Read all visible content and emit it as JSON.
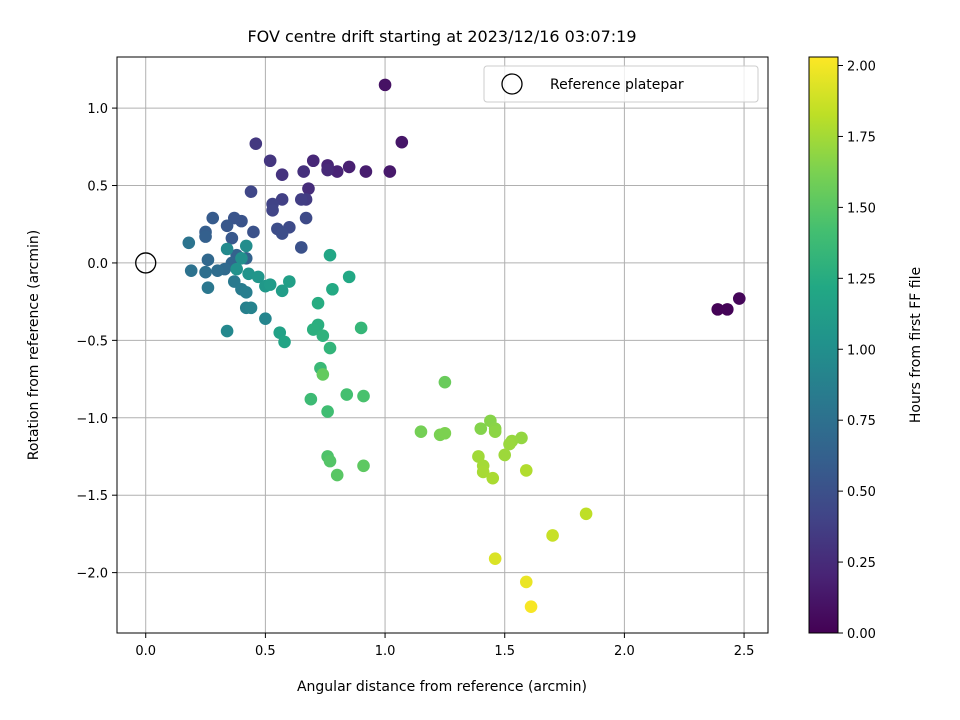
{
  "chart_data": {
    "type": "scatter",
    "title": "FOV centre drift starting at 2023/12/16 03:07:19",
    "xlabel": "Angular distance from reference (arcmin)",
    "ylabel": "Rotation from reference (arcmin)",
    "xlim": [
      -0.12,
      2.6
    ],
    "ylim": [
      -2.39,
      1.33
    ],
    "xticks": [
      0.0,
      0.5,
      1.0,
      1.5,
      2.0,
      2.5
    ],
    "xtick_labels": [
      "0.0",
      "0.5",
      "1.0",
      "1.5",
      "2.0",
      "2.5"
    ],
    "yticks": [
      1.0,
      0.5,
      0.0,
      -0.5,
      -1.0,
      -1.5,
      -2.0
    ],
    "ytick_labels": [
      "1.0",
      "0.5",
      "0.0",
      "−0.5",
      "−1.0",
      "−1.5",
      "−2.0"
    ],
    "grid": true,
    "legend": {
      "placement": "top-right",
      "label": "Reference platepar",
      "marker": "open-circle"
    },
    "reference_point": {
      "x": 0.0,
      "y": 0.0
    },
    "colorbar": {
      "label": "Hours from first FF file",
      "range": [
        0.0,
        2.03
      ],
      "colormap": "viridis",
      "ticks": [
        0.0,
        0.25,
        0.5,
        0.75,
        1.0,
        1.25,
        1.5,
        1.75,
        2.0
      ],
      "tick_labels": [
        "0.00",
        "0.25",
        "0.50",
        "0.75",
        "1.00",
        "1.25",
        "1.50",
        "1.75",
        "2.00"
      ]
    },
    "points": [
      {
        "x": 2.39,
        "y": -0.3,
        "c": 0.01
      },
      {
        "x": 2.43,
        "y": -0.3,
        "c": 0.02
      },
      {
        "x": 2.48,
        "y": -0.23,
        "c": 0.03
      },
      {
        "x": 1.0,
        "y": 1.15,
        "c": 0.1
      },
      {
        "x": 1.07,
        "y": 0.78,
        "c": 0.12
      },
      {
        "x": 1.02,
        "y": 0.59,
        "c": 0.14
      },
      {
        "x": 0.92,
        "y": 0.59,
        "c": 0.16
      },
      {
        "x": 0.85,
        "y": 0.62,
        "c": 0.18
      },
      {
        "x": 0.8,
        "y": 0.59,
        "c": 0.2
      },
      {
        "x": 0.76,
        "y": 0.63,
        "c": 0.21
      },
      {
        "x": 0.7,
        "y": 0.66,
        "c": 0.22
      },
      {
        "x": 0.76,
        "y": 0.6,
        "c": 0.24
      },
      {
        "x": 0.68,
        "y": 0.48,
        "c": 0.26
      },
      {
        "x": 0.66,
        "y": 0.59,
        "c": 0.28
      },
      {
        "x": 0.57,
        "y": 0.57,
        "c": 0.3
      },
      {
        "x": 0.52,
        "y": 0.66,
        "c": 0.32
      },
      {
        "x": 0.46,
        "y": 0.77,
        "c": 0.33
      },
      {
        "x": 0.67,
        "y": 0.41,
        "c": 0.35
      },
      {
        "x": 0.65,
        "y": 0.41,
        "c": 0.37
      },
      {
        "x": 0.57,
        "y": 0.41,
        "c": 0.38
      },
      {
        "x": 0.53,
        "y": 0.38,
        "c": 0.4
      },
      {
        "x": 0.53,
        "y": 0.34,
        "c": 0.41
      },
      {
        "x": 0.44,
        "y": 0.46,
        "c": 0.43
      },
      {
        "x": 0.67,
        "y": 0.29,
        "c": 0.45
      },
      {
        "x": 0.6,
        "y": 0.23,
        "c": 0.46
      },
      {
        "x": 0.55,
        "y": 0.22,
        "c": 0.47
      },
      {
        "x": 0.57,
        "y": 0.19,
        "c": 0.48
      },
      {
        "x": 0.65,
        "y": 0.1,
        "c": 0.5
      },
      {
        "x": 0.45,
        "y": 0.2,
        "c": 0.51
      },
      {
        "x": 0.4,
        "y": 0.27,
        "c": 0.52
      },
      {
        "x": 0.37,
        "y": 0.29,
        "c": 0.53
      },
      {
        "x": 0.34,
        "y": 0.24,
        "c": 0.55
      },
      {
        "x": 0.36,
        "y": 0.16,
        "c": 0.56
      },
      {
        "x": 0.28,
        "y": 0.29,
        "c": 0.58
      },
      {
        "x": 0.25,
        "y": 0.2,
        "c": 0.6
      },
      {
        "x": 0.25,
        "y": 0.17,
        "c": 0.62
      },
      {
        "x": 0.38,
        "y": 0.05,
        "c": 0.63
      },
      {
        "x": 0.42,
        "y": 0.03,
        "c": 0.64
      },
      {
        "x": 0.36,
        "y": 0.0,
        "c": 0.66
      },
      {
        "x": 0.26,
        "y": 0.02,
        "c": 0.68
      },
      {
        "x": 0.33,
        "y": -0.04,
        "c": 0.7
      },
      {
        "x": 0.3,
        "y": -0.05,
        "c": 0.72
      },
      {
        "x": 0.25,
        "y": -0.06,
        "c": 0.74
      },
      {
        "x": 0.19,
        "y": -0.05,
        "c": 0.76
      },
      {
        "x": 0.18,
        "y": 0.13,
        "c": 0.78
      },
      {
        "x": 0.26,
        "y": -0.16,
        "c": 0.8
      },
      {
        "x": 0.37,
        "y": -0.12,
        "c": 0.82
      },
      {
        "x": 0.4,
        "y": -0.17,
        "c": 0.84
      },
      {
        "x": 0.42,
        "y": -0.19,
        "c": 0.86
      },
      {
        "x": 0.42,
        "y": -0.29,
        "c": 0.88
      },
      {
        "x": 0.44,
        "y": -0.29,
        "c": 0.9
      },
      {
        "x": 0.5,
        "y": -0.36,
        "c": 0.92
      },
      {
        "x": 0.34,
        "y": -0.44,
        "c": 0.94
      },
      {
        "x": 0.34,
        "y": 0.09,
        "c": 0.96
      },
      {
        "x": 0.42,
        "y": 0.11,
        "c": 0.98
      },
      {
        "x": 0.4,
        "y": 0.03,
        "c": 1.0
      },
      {
        "x": 0.38,
        "y": -0.04,
        "c": 1.02
      },
      {
        "x": 0.43,
        "y": -0.07,
        "c": 1.04
      },
      {
        "x": 0.47,
        "y": -0.09,
        "c": 1.06
      },
      {
        "x": 0.5,
        "y": -0.15,
        "c": 1.08
      },
      {
        "x": 0.52,
        "y": -0.14,
        "c": 1.1
      },
      {
        "x": 0.57,
        "y": -0.18,
        "c": 1.12
      },
      {
        "x": 0.6,
        "y": -0.12,
        "c": 1.14
      },
      {
        "x": 0.56,
        "y": -0.45,
        "c": 1.16
      },
      {
        "x": 0.58,
        "y": -0.51,
        "c": 1.18
      },
      {
        "x": 0.77,
        "y": 0.05,
        "c": 1.2
      },
      {
        "x": 0.85,
        "y": -0.09,
        "c": 1.22
      },
      {
        "x": 0.78,
        "y": -0.17,
        "c": 1.23
      },
      {
        "x": 0.72,
        "y": -0.26,
        "c": 1.25
      },
      {
        "x": 0.72,
        "y": -0.4,
        "c": 1.27
      },
      {
        "x": 0.7,
        "y": -0.43,
        "c": 1.28
      },
      {
        "x": 0.74,
        "y": -0.47,
        "c": 1.3
      },
      {
        "x": 0.77,
        "y": -0.55,
        "c": 1.32
      },
      {
        "x": 0.9,
        "y": -0.42,
        "c": 1.34
      },
      {
        "x": 0.73,
        "y": -0.68,
        "c": 1.36
      },
      {
        "x": 0.69,
        "y": -0.88,
        "c": 1.38
      },
      {
        "x": 0.76,
        "y": -0.96,
        "c": 1.4
      },
      {
        "x": 0.84,
        "y": -0.85,
        "c": 1.42
      },
      {
        "x": 0.91,
        "y": -0.86,
        "c": 1.44
      },
      {
        "x": 0.76,
        "y": -1.25,
        "c": 1.46
      },
      {
        "x": 0.77,
        "y": -1.28,
        "c": 1.48
      },
      {
        "x": 0.8,
        "y": -1.37,
        "c": 1.5
      },
      {
        "x": 0.91,
        "y": -1.31,
        "c": 1.52
      },
      {
        "x": 0.74,
        "y": -0.72,
        "c": 1.54
      },
      {
        "x": 1.25,
        "y": -0.77,
        "c": 1.56
      },
      {
        "x": 1.15,
        "y": -1.09,
        "c": 1.6
      },
      {
        "x": 1.23,
        "y": -1.11,
        "c": 1.62
      },
      {
        "x": 1.25,
        "y": -1.1,
        "c": 1.63
      },
      {
        "x": 1.4,
        "y": -1.07,
        "c": 1.65
      },
      {
        "x": 1.44,
        "y": -1.02,
        "c": 1.66
      },
      {
        "x": 1.46,
        "y": -1.07,
        "c": 1.67
      },
      {
        "x": 1.46,
        "y": -1.09,
        "c": 1.68
      },
      {
        "x": 1.57,
        "y": -1.13,
        "c": 1.7
      },
      {
        "x": 1.53,
        "y": -1.15,
        "c": 1.71
      },
      {
        "x": 1.52,
        "y": -1.17,
        "c": 1.72
      },
      {
        "x": 1.5,
        "y": -1.24,
        "c": 1.73
      },
      {
        "x": 1.39,
        "y": -1.25,
        "c": 1.74
      },
      {
        "x": 1.41,
        "y": -1.31,
        "c": 1.75
      },
      {
        "x": 1.41,
        "y": -1.35,
        "c": 1.76
      },
      {
        "x": 1.45,
        "y": -1.39,
        "c": 1.77
      },
      {
        "x": 1.59,
        "y": -1.34,
        "c": 1.79
      },
      {
        "x": 1.84,
        "y": -1.62,
        "c": 1.83
      },
      {
        "x": 1.7,
        "y": -1.76,
        "c": 1.86
      },
      {
        "x": 1.46,
        "y": -1.91,
        "c": 1.92
      },
      {
        "x": 1.59,
        "y": -2.06,
        "c": 1.97
      },
      {
        "x": 1.61,
        "y": -2.22,
        "c": 2.01
      }
    ]
  }
}
